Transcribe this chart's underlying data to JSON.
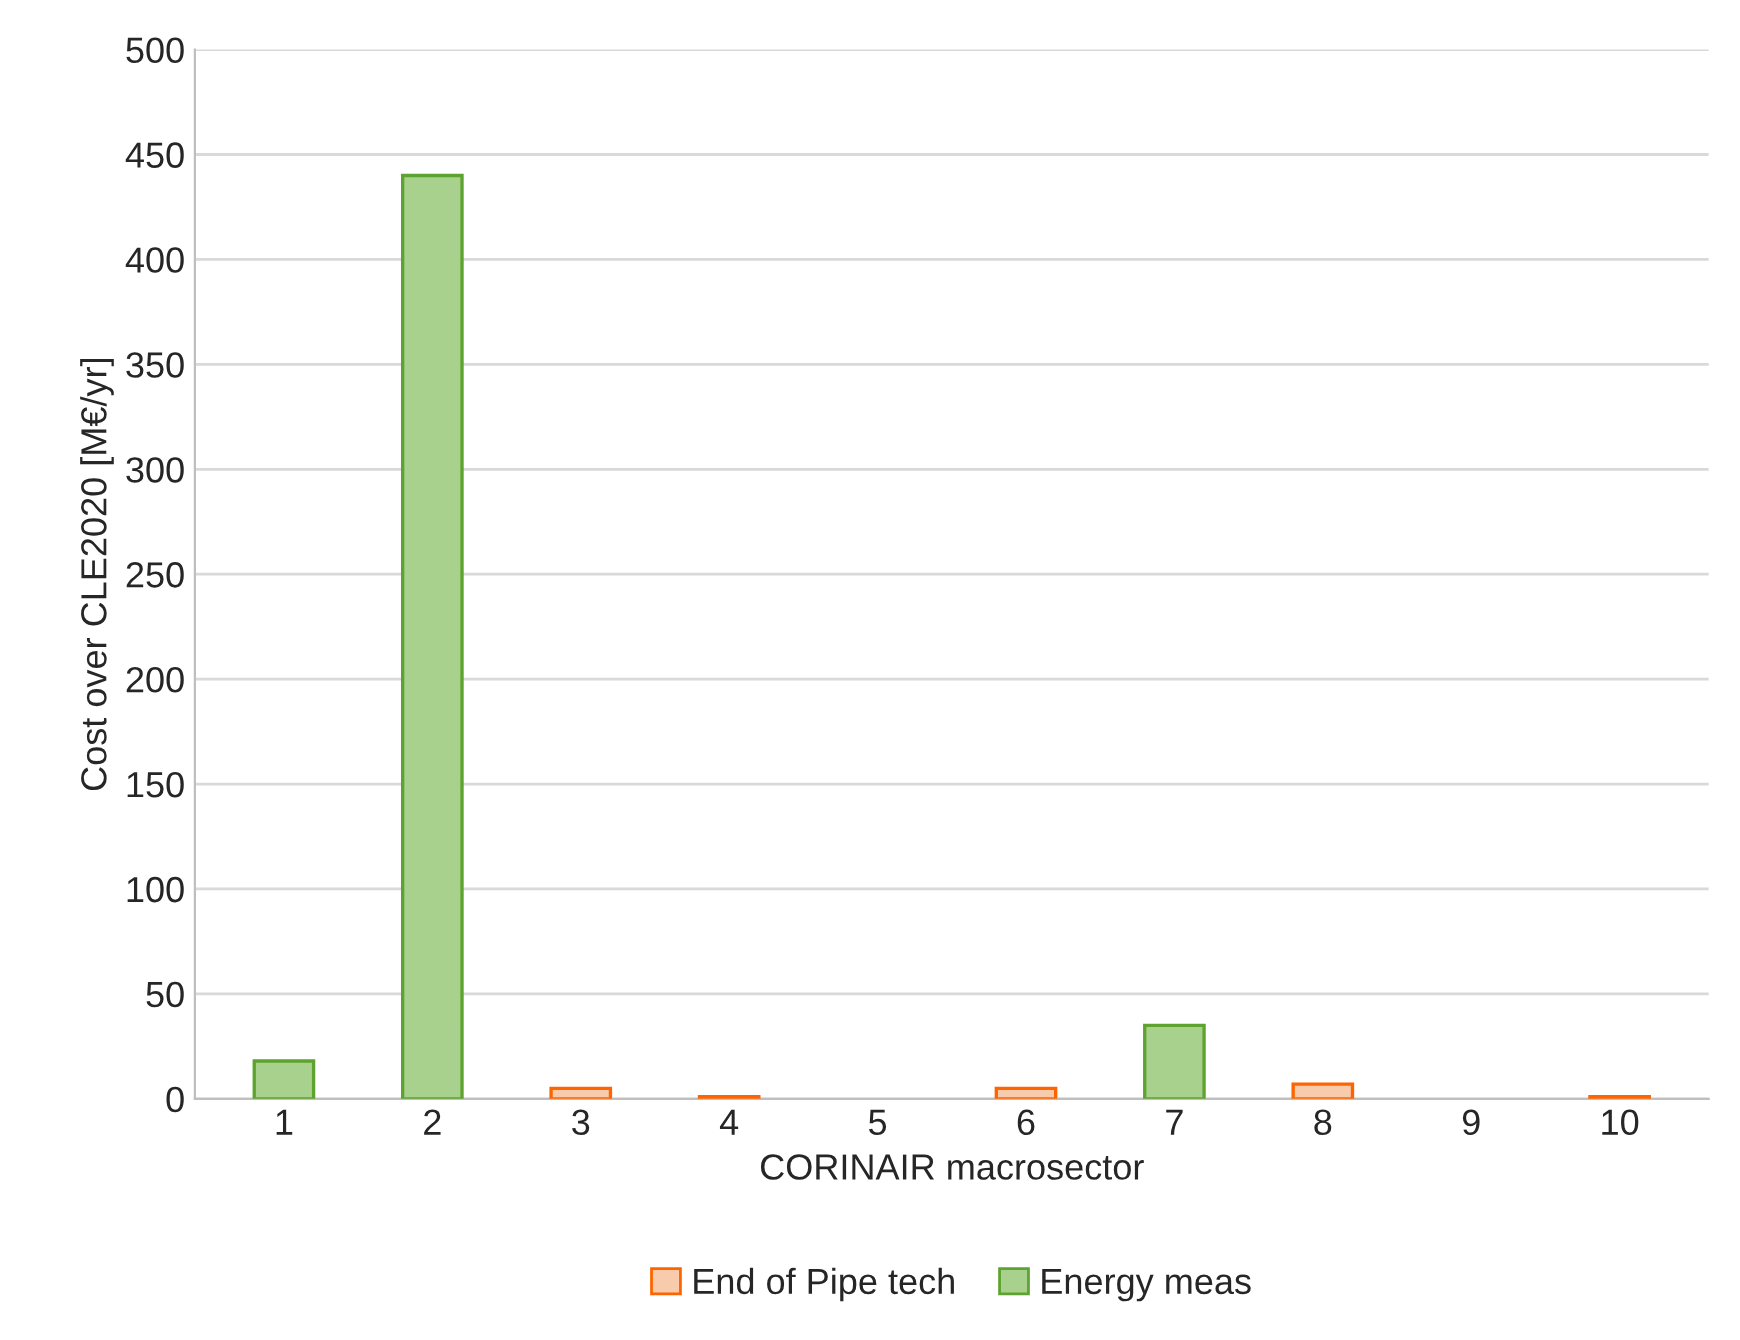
{
  "chart_data": {
    "type": "bar",
    "stacked": true,
    "xlabel": "CORINAIR macrosector",
    "ylabel": "Cost over CLE2020 [M€/yr]",
    "categories": [
      "1",
      "2",
      "3",
      "4",
      "5",
      "6",
      "7",
      "8",
      "9",
      "10"
    ],
    "series": [
      {
        "name": "End of Pipe tech",
        "color": "#f8cbad",
        "values": [
          null,
          null,
          5,
          1,
          null,
          5,
          null,
          7,
          null,
          1
        ]
      },
      {
        "name": "Energy meas",
        "color": "#a9d18e",
        "values": [
          18,
          440,
          null,
          null,
          null,
          null,
          35,
          null,
          null,
          null
        ]
      }
    ],
    "ylim": [
      0,
      500
    ],
    "yticks": [
      0,
      50,
      100,
      150,
      200,
      250,
      300,
      350,
      400,
      450,
      500
    ],
    "grid": "y",
    "legend": "bottom"
  }
}
